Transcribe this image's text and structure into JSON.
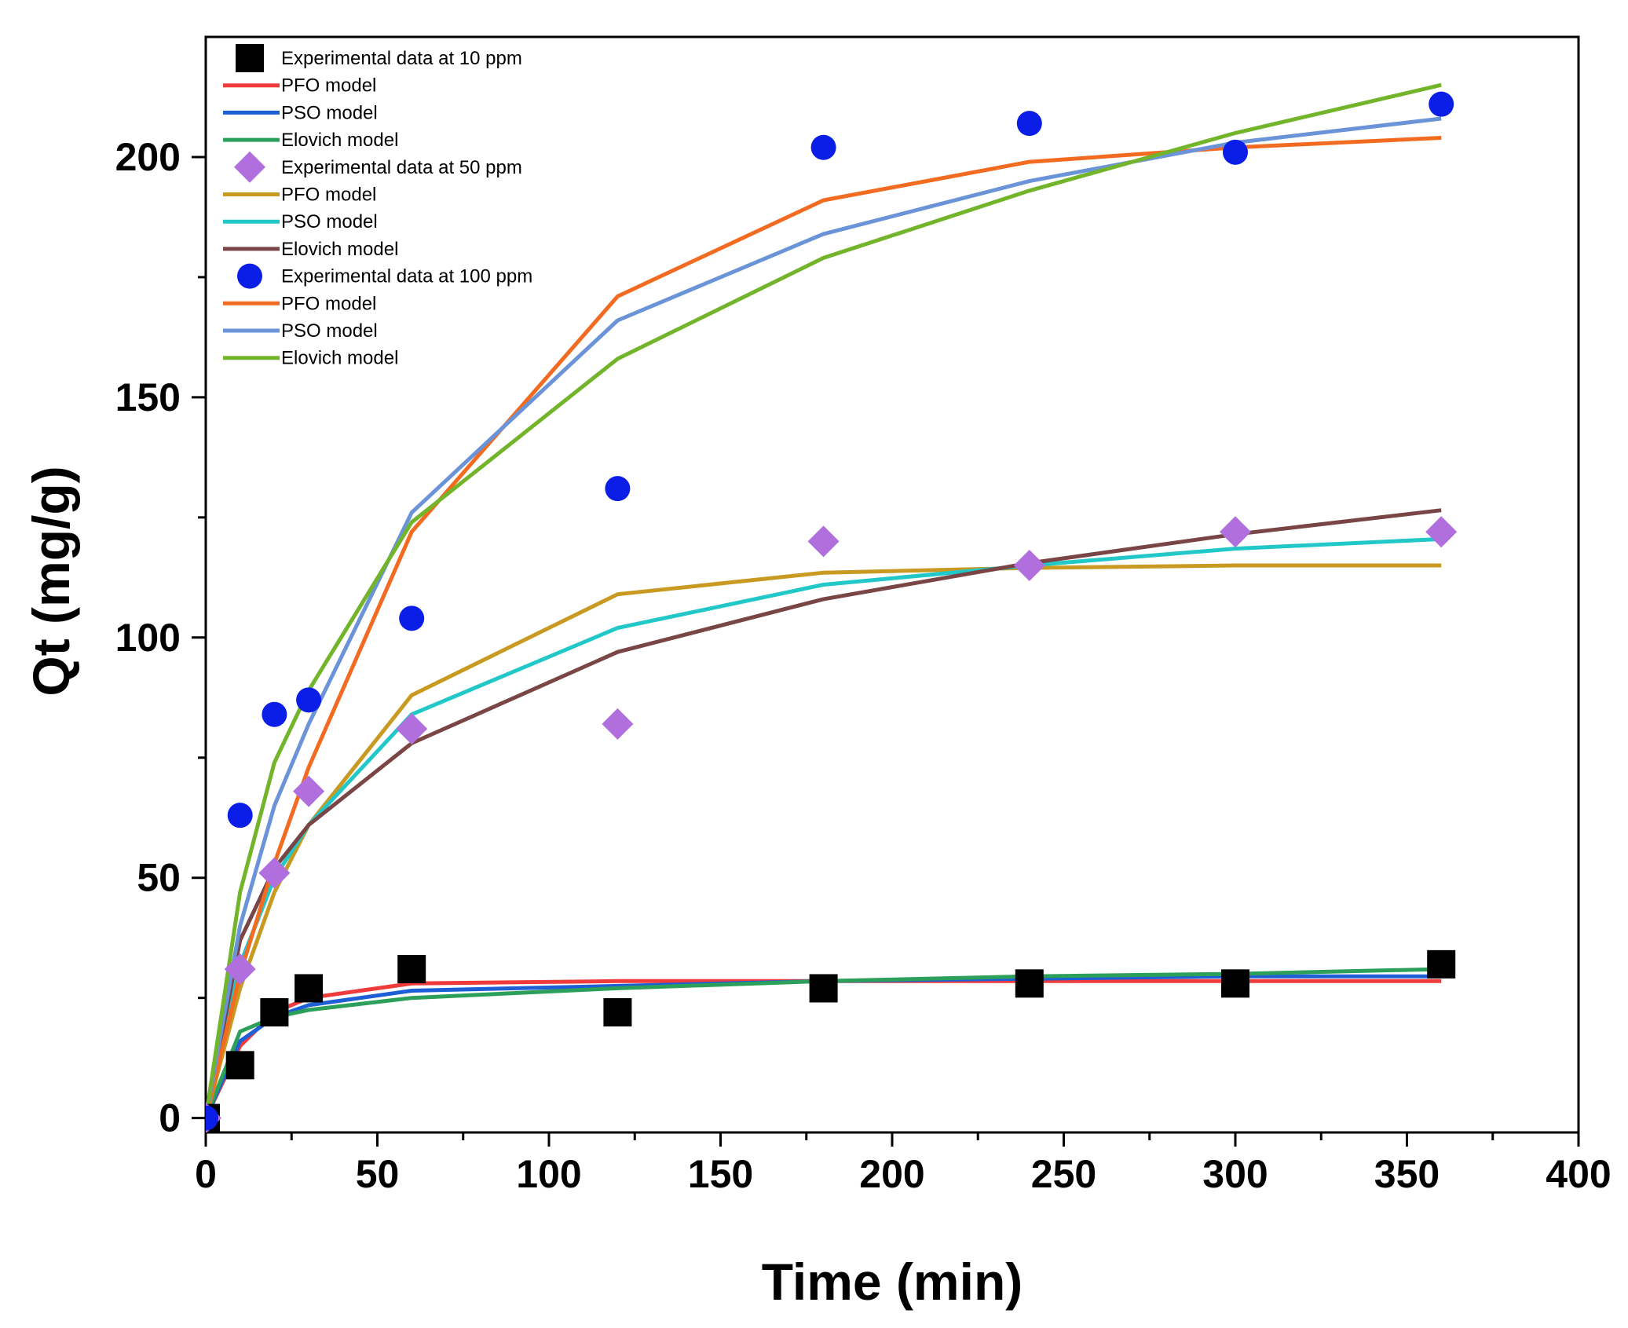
{
  "chart_data": {
    "type": "scatter",
    "title": "",
    "xlabel": "Time (min)",
    "ylabel": "Qt (mg/g)",
    "xlim": [
      0,
      400
    ],
    "ylim": [
      -3,
      225
    ],
    "xticks": [
      0,
      50,
      100,
      150,
      200,
      250,
      300,
      350,
      400
    ],
    "yticks": [
      0,
      50,
      100,
      150,
      200
    ],
    "grid": false,
    "legend_position": "top-left",
    "series": [
      {
        "name": "Experimental data at 10 ppm",
        "kind": "scatter",
        "marker": "square",
        "color": "#000000",
        "x": [
          0,
          10,
          20,
          30,
          60,
          120,
          180,
          240,
          300,
          360
        ],
        "y": [
          0,
          11,
          22,
          27,
          31,
          22,
          27,
          28,
          28,
          32
        ]
      },
      {
        "name": "PFO model",
        "kind": "line",
        "color": "#ef3b3b",
        "x": [
          0,
          10,
          20,
          30,
          60,
          120,
          180,
          240,
          300,
          360
        ],
        "y": [
          0,
          15,
          22,
          25,
          28,
          28.5,
          28.5,
          28.5,
          28.5,
          28.5
        ]
      },
      {
        "name": "PSO model",
        "kind": "line",
        "color": "#1f5fd6",
        "x": [
          0,
          10,
          20,
          30,
          60,
          120,
          180,
          240,
          300,
          360
        ],
        "y": [
          0,
          16,
          21,
          23.5,
          26.5,
          27.5,
          28.5,
          29,
          29.5,
          29.5
        ]
      },
      {
        "name": "Elovich model",
        "kind": "line",
        "color": "#2ca05a",
        "x": [
          0,
          10,
          20,
          30,
          60,
          120,
          180,
          240,
          300,
          360
        ],
        "y": [
          0,
          18,
          21,
          22.5,
          25,
          27,
          28.5,
          29.5,
          30,
          31
        ]
      },
      {
        "name": "Experimental data at 50 ppm",
        "kind": "scatter",
        "marker": "diamond",
        "color": "#b06fdc",
        "x": [
          0,
          10,
          20,
          30,
          60,
          120,
          180,
          240,
          300,
          360
        ],
        "y": [
          0,
          31,
          51,
          68,
          81,
          82,
          120,
          115,
          122,
          122
        ]
      },
      {
        "name": "PFO model",
        "kind": "line",
        "color": "#c99a22",
        "x": [
          0,
          10,
          20,
          30,
          60,
          120,
          180,
          240,
          300,
          360
        ],
        "y": [
          0,
          27,
          47,
          61,
          88,
          109,
          113.5,
          114.5,
          115,
          115
        ]
      },
      {
        "name": "PSO model",
        "kind": "line",
        "color": "#22c7c7",
        "x": [
          0,
          10,
          20,
          30,
          60,
          120,
          180,
          240,
          300,
          360
        ],
        "y": [
          0,
          32,
          50,
          61,
          84,
          102,
          111,
          115,
          118.5,
          120.5
        ]
      },
      {
        "name": "Elovich model",
        "kind": "line",
        "color": "#7a4545",
        "x": [
          0,
          10,
          20,
          30,
          60,
          120,
          180,
          240,
          300,
          360
        ],
        "y": [
          0,
          37,
          52,
          61,
          78,
          97,
          108,
          115.5,
          121.5,
          126.5
        ]
      },
      {
        "name": "Experimental data at 100 ppm",
        "kind": "scatter",
        "marker": "circle",
        "color": "#0a1ee8",
        "x": [
          0,
          10,
          20,
          30,
          60,
          120,
          180,
          240,
          300,
          360
        ],
        "y": [
          0,
          63,
          84,
          87,
          104,
          131,
          202,
          207,
          201,
          211
        ]
      },
      {
        "name": "PFO model",
        "kind": "line",
        "color": "#f26b21",
        "x": [
          0,
          10,
          20,
          30,
          60,
          120,
          180,
          240,
          300,
          360
        ],
        "y": [
          0,
          30,
          53,
          73,
          122,
          171,
          191,
          199,
          202,
          204
        ]
      },
      {
        "name": "PSO model",
        "kind": "line",
        "color": "#6a93d8",
        "x": [
          0,
          10,
          20,
          30,
          60,
          120,
          180,
          240,
          300,
          360
        ],
        "y": [
          0,
          40,
          65,
          82,
          126,
          166,
          184,
          195,
          203,
          208
        ]
      },
      {
        "name": "Elovich model",
        "kind": "line",
        "color": "#72b52a",
        "x": [
          0,
          10,
          20,
          30,
          60,
          120,
          180,
          240,
          300,
          360
        ],
        "y": [
          0,
          47,
          74,
          89,
          124,
          158,
          179,
          193,
          205,
          215
        ]
      }
    ]
  }
}
